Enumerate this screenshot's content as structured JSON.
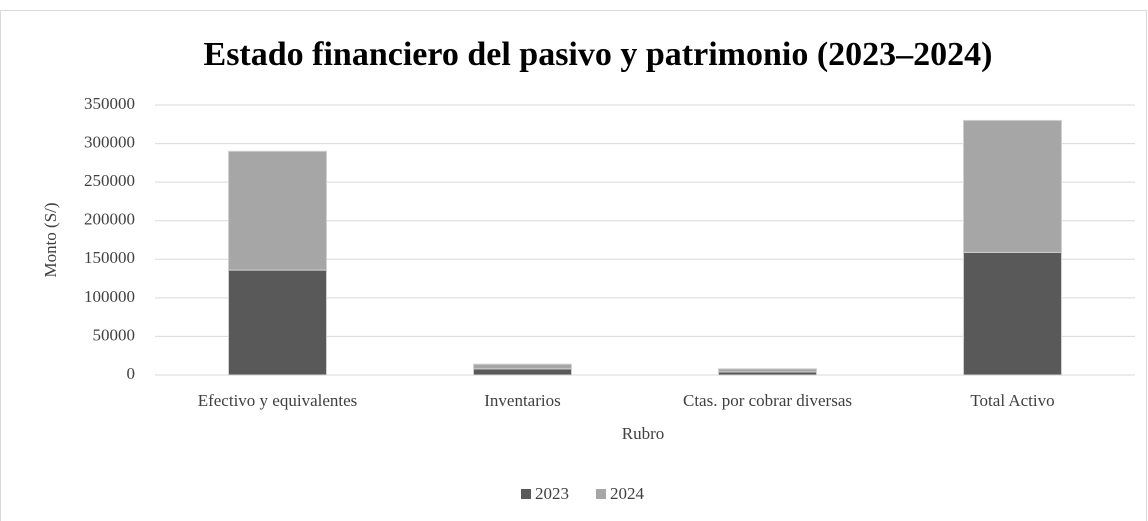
{
  "chart_data": {
    "type": "stacked_bar",
    "title": "Estado financiero del pasivo y patrimonio (2023–2024)",
    "x_label": "Rubro",
    "y_label": "Monto (S/)",
    "categories": [
      "Efectivo y equivalentes",
      "Inventarios",
      "Ctas. por cobrar diversas",
      "Total Activo"
    ],
    "series": [
      {
        "name": "2023",
        "color": "#595959",
        "values": [
          136000,
          8000,
          4000,
          159000
        ]
      },
      {
        "name": "2024",
        "color": "#a6a6a6",
        "values": [
          154000,
          6000,
          4000,
          171000
        ]
      }
    ],
    "ylim": [
      0,
      350000
    ],
    "yticks": [
      0,
      50000,
      100000,
      150000,
      200000,
      250000,
      300000,
      350000
    ],
    "grid": true,
    "legend": "bottom"
  }
}
